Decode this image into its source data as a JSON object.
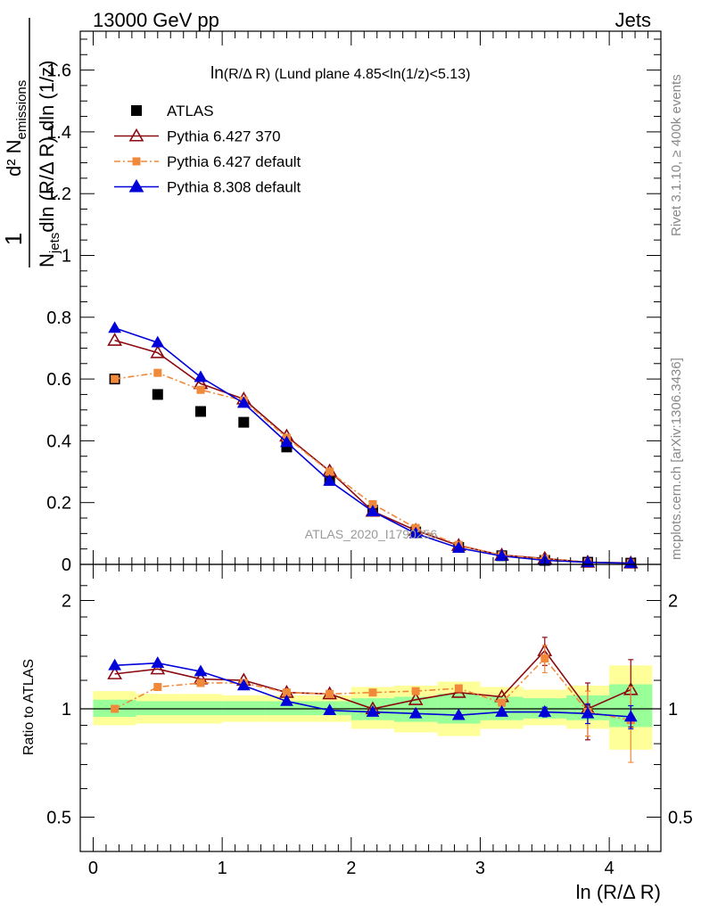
{
  "header": {
    "left": "13000 GeV pp",
    "right": "Jets"
  },
  "side_text": {
    "top": "Rivet 3.1.10, ≥ 400k events",
    "bottom": "mcplots.cern.ch [arXiv:1306.3436]"
  },
  "chart_data": [
    {
      "type": "scatter",
      "title": "ln(R/Δ R) (Lund plane 4.85<ln(1/z)<5.13)",
      "title_parts": {
        "main": "ln",
        "sub": "(R/Δ R)",
        "rest": " (Lund plane 4.85<ln(1/z)<5.13)"
      },
      "ylabel": {
        "numerator": "d² N",
        "numerator_sub": "emissions",
        "denominator": "N",
        "denominator_sub": "jets",
        "denominator_rest": "dln (R/Δ R) dln (1/z)",
        "one": "1"
      },
      "watermark": "ATLAS_2020_I1790256",
      "xlim": [
        -0.1,
        4.4
      ],
      "ylim": [
        0,
        1.75
      ],
      "y_ticks": [
        0,
        0.2,
        0.4,
        0.6,
        0.8,
        1,
        1.2,
        1.4,
        1.6
      ],
      "y_tick_labels": [
        "0",
        "0.2",
        "0.4",
        "0.6",
        "0.8",
        "1",
        "1.2",
        "1.4",
        "1.6"
      ],
      "legend_position": "top-left",
      "x": [
        0.167,
        0.5,
        0.833,
        1.167,
        1.5,
        1.833,
        2.167,
        2.5,
        2.833,
        3.167,
        3.5,
        3.833,
        4.167
      ],
      "series": [
        {
          "name": "ATLAS",
          "color": "#000000",
          "marker": "square",
          "values": [
            0.6,
            0.55,
            0.495,
            0.46,
            0.38,
            0.272,
            0.175,
            0.105,
            0.055,
            0.028,
            0.013,
            0.007,
            0.004
          ]
        },
        {
          "name": "Pythia 6.427 370",
          "color": "#8b0a12",
          "marker": "triangle-open",
          "line": "solid",
          "values": [
            0.725,
            0.685,
            0.585,
            0.535,
            0.415,
            0.302,
            0.172,
            0.11,
            0.061,
            0.03,
            0.019,
            0.007,
            0.0045
          ]
        },
        {
          "name": "Pythia 6.427 default",
          "color": "#f08a3a",
          "marker": "square-small",
          "line": "dashdot",
          "values": [
            0.6,
            0.62,
            0.565,
            0.53,
            0.41,
            0.3,
            0.195,
            0.118,
            0.063,
            0.029,
            0.018,
            0.007,
            0.0037
          ]
        },
        {
          "name": "Pythia 8.308 default",
          "color": "#0000d8",
          "marker": "triangle",
          "line": "solid",
          "values": [
            0.765,
            0.718,
            0.606,
            0.522,
            0.395,
            0.27,
            0.171,
            0.1,
            0.053,
            0.027,
            0.013,
            0.0068,
            0.0038
          ]
        }
      ]
    },
    {
      "type": "scatter",
      "ylabel": "Ratio to ATLAS",
      "xlabel": "ln (R/Δ R)",
      "ylog": true,
      "ylim": [
        0.4,
        2.5
      ],
      "xlim": [
        -0.1,
        4.4
      ],
      "x_ticks": [
        0,
        1,
        2,
        3,
        4
      ],
      "x_tick_labels": [
        "0",
        "1",
        "2",
        "3",
        "4"
      ],
      "y_ticks": [
        0.5,
        1,
        2
      ],
      "y_tick_labels": [
        "0.5",
        "1",
        "2"
      ],
      "x": [
        0.167,
        0.5,
        0.833,
        1.167,
        1.5,
        1.833,
        2.167,
        2.5,
        2.833,
        3.167,
        3.5,
        3.833,
        4.167
      ],
      "bin_edges": [
        0,
        0.333,
        0.667,
        1.0,
        1.333,
        1.667,
        2.0,
        2.333,
        2.667,
        3.0,
        3.333,
        3.667,
        4.0,
        4.333
      ],
      "bands": {
        "yellow": {
          "color": "#ffff99",
          "lower": [
            0.9,
            0.91,
            0.91,
            0.92,
            0.92,
            0.92,
            0.88,
            0.86,
            0.84,
            0.88,
            0.9,
            0.88,
            0.77
          ],
          "upper": [
            1.12,
            1.1,
            1.1,
            1.09,
            1.09,
            1.09,
            1.15,
            1.16,
            1.19,
            1.15,
            1.13,
            1.16,
            1.32
          ]
        },
        "green": {
          "color": "#99ff99",
          "lower": [
            0.95,
            0.96,
            0.96,
            0.96,
            0.96,
            0.96,
            0.93,
            0.92,
            0.91,
            0.93,
            0.94,
            0.93,
            0.89
          ],
          "upper": [
            1.06,
            1.05,
            1.05,
            1.05,
            1.05,
            1.05,
            1.07,
            1.08,
            1.1,
            1.08,
            1.07,
            1.09,
            1.17
          ]
        }
      },
      "series": [
        {
          "name": "Pythia 6.427 370",
          "color": "#8b0a12",
          "marker": "triangle-open",
          "line": "solid",
          "values": [
            1.25,
            1.29,
            1.21,
            1.2,
            1.11,
            1.1,
            1.0,
            1.06,
            1.11,
            1.08,
            1.45,
            1.0,
            1.13
          ],
          "err": [
            0,
            0,
            0,
            0,
            0,
            0,
            0,
            0,
            0,
            0,
            0.13,
            0.18,
            0.24
          ]
        },
        {
          "name": "Pythia 6.427 default",
          "color": "#f08a3a",
          "marker": "square-small",
          "line": "dashdot",
          "values": [
            1.0,
            1.15,
            1.18,
            1.18,
            1.11,
            1.1,
            1.11,
            1.12,
            1.14,
            1.04,
            1.38,
            0.98,
            0.93
          ],
          "err": [
            0,
            0,
            0,
            0,
            0,
            0,
            0,
            0,
            0,
            0,
            0.12,
            0.14,
            0.22
          ]
        },
        {
          "name": "Pythia 8.308 default",
          "color": "#0000d8",
          "marker": "triangle",
          "line": "solid",
          "values": [
            1.32,
            1.34,
            1.27,
            1.16,
            1.05,
            0.99,
            0.98,
            0.97,
            0.96,
            0.98,
            0.98,
            0.97,
            0.95
          ],
          "err": [
            0,
            0,
            0,
            0,
            0,
            0,
            0,
            0,
            0,
            0,
            0.03,
            0.06,
            0.07
          ]
        }
      ]
    }
  ]
}
